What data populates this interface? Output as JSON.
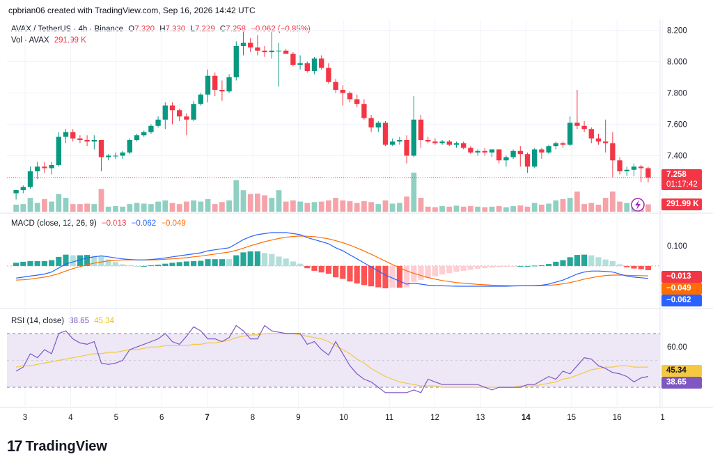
{
  "header": {
    "attribution": "cpbrian06 created with TradingView.com, Sep 16, 2026 14:42 UTC"
  },
  "price_legend": {
    "symbol": "AVAX / TetherUS · 4h · Binance",
    "o_label": "O",
    "o_value": "7.320",
    "h_label": "H",
    "h_value": "7.330",
    "l_label": "L",
    "l_value": "7.229",
    "c_label": "C",
    "c_value": "7.258",
    "change": "−0.062 (−0.85%)"
  },
  "volume_legend": {
    "label": "Vol · AVAX",
    "value": "291.99 K"
  },
  "macd_legend": {
    "label": "MACD (close, 12, 26, 9)",
    "hist": "−0.013",
    "macd": "−0.062",
    "signal": "−0.049"
  },
  "rsi_legend": {
    "label": "RSI (14, close)",
    "rsi": "38.65",
    "ma": "45.34"
  },
  "badges": {
    "price": "7.258",
    "countdown": "01:17:42",
    "volume": "291.99 K",
    "macd_hist": "−0.013",
    "macd_signal": "−0.049",
    "macd_line": "−0.062",
    "rsi_ma": "45.34",
    "rsi": "38.65"
  },
  "footer": {
    "brand": "TradingView"
  },
  "colors": {
    "up": "#089981",
    "down": "#f23645",
    "vol_up": "#8fd0c3",
    "vol_down": "#f5a3a9",
    "macd_line": "#2962ff",
    "signal_line": "#ff6d00",
    "rsi_line": "#7e57c2",
    "rsi_ma": "#f5c842",
    "rsi_band": "#ede7f6"
  },
  "chart_data": [
    {
      "type": "candlestick",
      "ylim": [
        7.06,
        8.26
      ],
      "y_ticks": [
        "8.200",
        "8.000",
        "7.800",
        "7.600",
        "7.400"
      ],
      "x_ticks": [
        "3",
        "4",
        "5",
        "6",
        "7",
        "8",
        "9",
        "10",
        "11",
        "12",
        "13",
        "14",
        "15",
        "16",
        "1"
      ],
      "candles": [
        [
          7.16,
          7.18,
          7.12,
          7.18
        ],
        [
          7.18,
          7.21,
          7.16,
          7.2
        ],
        [
          7.2,
          7.33,
          7.19,
          7.3
        ],
        [
          7.3,
          7.36,
          7.25,
          7.33
        ],
        [
          7.33,
          7.36,
          7.29,
          7.32
        ],
        [
          7.32,
          7.36,
          7.28,
          7.34
        ],
        [
          7.34,
          7.55,
          7.33,
          7.52
        ],
        [
          7.52,
          7.57,
          7.48,
          7.55
        ],
        [
          7.55,
          7.57,
          7.49,
          7.51
        ],
        [
          7.51,
          7.53,
          7.48,
          7.5
        ],
        [
          7.5,
          7.53,
          7.46,
          7.49
        ],
        [
          7.49,
          7.53,
          7.44,
          7.5
        ],
        [
          7.5,
          7.5,
          7.3,
          7.39
        ],
        [
          7.39,
          7.41,
          7.37,
          7.4
        ],
        [
          7.4,
          7.42,
          7.38,
          7.4
        ],
        [
          7.4,
          7.43,
          7.38,
          7.42
        ],
        [
          7.42,
          7.51,
          7.41,
          7.5
        ],
        [
          7.5,
          7.54,
          7.49,
          7.53
        ],
        [
          7.53,
          7.56,
          7.52,
          7.55
        ],
        [
          7.55,
          7.6,
          7.54,
          7.59
        ],
        [
          7.59,
          7.65,
          7.58,
          7.63
        ],
        [
          7.63,
          7.74,
          7.57,
          7.72
        ],
        [
          7.72,
          7.74,
          7.6,
          7.69
        ],
        [
          7.69,
          7.7,
          7.62,
          7.65
        ],
        [
          7.65,
          7.67,
          7.53,
          7.63
        ],
        [
          7.63,
          7.75,
          7.62,
          7.73
        ],
        [
          7.73,
          7.8,
          7.72,
          7.79
        ],
        [
          7.79,
          7.95,
          7.74,
          7.91
        ],
        [
          7.91,
          7.93,
          7.78,
          7.82
        ],
        [
          7.82,
          7.88,
          7.75,
          7.81
        ],
        [
          7.81,
          7.92,
          7.8,
          7.9
        ],
        [
          7.9,
          8.13,
          7.88,
          8.1
        ],
        [
          8.1,
          8.19,
          8.04,
          8.12
        ],
        [
          8.12,
          8.15,
          8.06,
          8.09
        ],
        [
          8.09,
          8.17,
          8.04,
          8.07
        ],
        [
          8.07,
          8.1,
          8.03,
          8.06
        ],
        [
          8.06,
          8.19,
          8.02,
          8.07
        ],
        [
          8.07,
          8.12,
          7.84,
          8.07
        ],
        [
          8.07,
          8.08,
          8.05,
          8.05
        ],
        [
          8.05,
          8.06,
          7.97,
          7.98
        ],
        [
          7.98,
          8.04,
          7.95,
          7.99
        ],
        [
          7.99,
          8.0,
          7.93,
          7.94
        ],
        [
          7.94,
          8.03,
          7.92,
          8.02
        ],
        [
          8.02,
          8.04,
          7.95,
          7.96
        ],
        [
          7.96,
          7.99,
          7.86,
          7.87
        ],
        [
          7.87,
          7.89,
          7.8,
          7.82
        ],
        [
          7.82,
          7.85,
          7.72,
          7.8
        ],
        [
          7.8,
          7.81,
          7.74,
          7.76
        ],
        [
          7.76,
          7.79,
          7.71,
          7.73
        ],
        [
          7.73,
          7.76,
          7.63,
          7.64
        ],
        [
          7.64,
          7.66,
          7.55,
          7.58
        ],
        [
          7.58,
          7.62,
          7.55,
          7.61
        ],
        [
          7.61,
          7.62,
          7.46,
          7.47
        ],
        [
          7.47,
          7.51,
          7.46,
          7.49
        ],
        [
          7.49,
          7.52,
          7.47,
          7.5
        ],
        [
          7.5,
          7.53,
          7.35,
          7.4
        ],
        [
          7.4,
          7.78,
          7.39,
          7.63
        ],
        [
          7.63,
          7.66,
          7.45,
          7.5
        ],
        [
          7.5,
          7.52,
          7.48,
          7.49
        ],
        [
          7.49,
          7.51,
          7.47,
          7.48
        ],
        [
          7.48,
          7.5,
          7.47,
          7.49
        ],
        [
          7.49,
          7.5,
          7.46,
          7.47
        ],
        [
          7.47,
          7.49,
          7.45,
          7.48
        ],
        [
          7.48,
          7.49,
          7.44,
          7.45
        ],
        [
          7.45,
          7.46,
          7.41,
          7.42
        ],
        [
          7.42,
          7.44,
          7.4,
          7.43
        ],
        [
          7.43,
          7.45,
          7.4,
          7.42
        ],
        [
          7.42,
          7.44,
          7.39,
          7.44
        ],
        [
          7.44,
          7.44,
          7.35,
          7.37
        ],
        [
          7.37,
          7.4,
          7.33,
          7.39
        ],
        [
          7.39,
          7.44,
          7.38,
          7.43
        ],
        [
          7.43,
          7.46,
          7.33,
          7.41
        ],
        [
          7.41,
          7.42,
          7.29,
          7.33
        ],
        [
          7.33,
          7.45,
          7.32,
          7.44
        ],
        [
          7.44,
          7.45,
          7.38,
          7.42
        ],
        [
          7.42,
          7.47,
          7.41,
          7.46
        ],
        [
          7.46,
          7.49,
          7.44,
          7.48
        ],
        [
          7.48,
          7.49,
          7.45,
          7.47
        ],
        [
          7.47,
          7.65,
          7.46,
          7.61
        ],
        [
          7.61,
          7.82,
          7.57,
          7.59
        ],
        [
          7.59,
          7.62,
          7.55,
          7.57
        ],
        [
          7.57,
          7.58,
          7.48,
          7.51
        ],
        [
          7.51,
          7.54,
          7.47,
          7.49
        ],
        [
          7.49,
          7.63,
          7.42,
          7.48
        ],
        [
          7.48,
          7.55,
          7.26,
          7.37
        ],
        [
          7.37,
          7.39,
          7.28,
          7.3
        ],
        [
          7.3,
          7.33,
          7.27,
          7.31
        ],
        [
          7.31,
          7.35,
          7.27,
          7.33
        ],
        [
          7.33,
          7.34,
          7.23,
          7.32
        ],
        [
          7.32,
          7.33,
          7.23,
          7.26
        ]
      ]
    },
    {
      "type": "bar",
      "series": "volume",
      "values": [
        0.28,
        0.3,
        0.55,
        0.35,
        0.5,
        0.4,
        0.7,
        0.55,
        0.3,
        0.3,
        0.32,
        0.3,
        0.9,
        0.2,
        0.22,
        0.2,
        0.3,
        0.35,
        0.32,
        0.3,
        0.4,
        0.45,
        0.35,
        0.3,
        0.4,
        0.45,
        0.4,
        0.5,
        0.3,
        0.38,
        0.45,
        1.25,
        0.85,
        0.7,
        0.72,
        0.65,
        0.55,
        0.85,
        0.4,
        0.45,
        0.4,
        0.35,
        0.38,
        0.4,
        0.45,
        0.55,
        0.45,
        0.42,
        0.35,
        0.42,
        0.38,
        0.3,
        0.45,
        0.32,
        0.35,
        0.6,
        1.55,
        0.55,
        0.2,
        0.18,
        0.22,
        0.2,
        0.24,
        0.2,
        0.22,
        0.2,
        0.18,
        0.2,
        0.22,
        0.18,
        0.22,
        0.25,
        0.2,
        0.35,
        0.28,
        0.32,
        0.45,
        0.5,
        0.55,
        0.8,
        0.3,
        0.35,
        0.28,
        0.55,
        0.8,
        0.4,
        0.35,
        0.3,
        0.22,
        0.29
      ]
    },
    {
      "type": "line",
      "title": "MACD (close, 12, 26, 9)",
      "ylim": [
        -0.2,
        0.22
      ],
      "y_ticks": [
        "0.100"
      ],
      "series": [
        {
          "name": "macd",
          "values": [
            -0.06,
            -0.055,
            -0.05,
            -0.045,
            -0.04,
            -0.03,
            -0.01,
            0.01,
            0.02,
            0.03,
            0.04,
            0.045,
            0.05,
            0.045,
            0.04,
            0.035,
            0.032,
            0.03,
            0.03,
            0.032,
            0.035,
            0.04,
            0.045,
            0.05,
            0.055,
            0.06,
            0.065,
            0.075,
            0.08,
            0.085,
            0.09,
            0.11,
            0.13,
            0.145,
            0.155,
            0.16,
            0.165,
            0.165,
            0.165,
            0.16,
            0.155,
            0.14,
            0.13,
            0.12,
            0.11,
            0.09,
            0.075,
            0.055,
            0.035,
            0.015,
            -0.005,
            -0.025,
            -0.045,
            -0.06,
            -0.075,
            -0.09,
            -0.085,
            -0.09,
            -0.095,
            -0.097,
            -0.098,
            -0.099,
            -0.1,
            -0.1,
            -0.1,
            -0.1,
            -0.1,
            -0.1,
            -0.1,
            -0.1,
            -0.099,
            -0.098,
            -0.098,
            -0.097,
            -0.095,
            -0.09,
            -0.08,
            -0.07,
            -0.055,
            -0.04,
            -0.03,
            -0.025,
            -0.025,
            -0.027,
            -0.03,
            -0.04,
            -0.05,
            -0.055,
            -0.058,
            -0.062
          ]
        },
        {
          "name": "signal",
          "values": [
            -0.07,
            -0.068,
            -0.065,
            -0.06,
            -0.055,
            -0.048,
            -0.038,
            -0.025,
            -0.013,
            -0.003,
            0.006,
            0.014,
            0.02,
            0.025,
            0.028,
            0.03,
            0.03,
            0.03,
            0.03,
            0.03,
            0.031,
            0.033,
            0.035,
            0.038,
            0.041,
            0.045,
            0.049,
            0.054,
            0.059,
            0.064,
            0.069,
            0.077,
            0.088,
            0.1,
            0.11,
            0.12,
            0.128,
            0.136,
            0.142,
            0.146,
            0.148,
            0.147,
            0.145,
            0.14,
            0.134,
            0.125,
            0.115,
            0.103,
            0.089,
            0.074,
            0.058,
            0.041,
            0.024,
            0.007,
            -0.008,
            -0.024,
            -0.036,
            -0.047,
            -0.057,
            -0.065,
            -0.072,
            -0.077,
            -0.082,
            -0.085,
            -0.088,
            -0.091,
            -0.093,
            -0.095,
            -0.096,
            -0.097,
            -0.098,
            -0.098,
            -0.098,
            -0.098,
            -0.097,
            -0.096,
            -0.093,
            -0.088,
            -0.082,
            -0.074,
            -0.065,
            -0.058,
            -0.052,
            -0.047,
            -0.045,
            -0.045,
            -0.046,
            -0.047,
            -0.048,
            -0.049
          ]
        }
      ]
    },
    {
      "type": "line",
      "title": "RSI (14, close)",
      "ylim": [
        15,
        85
      ],
      "y_ticks": [
        "60.00"
      ],
      "bands": [
        70,
        30
      ],
      "series": [
        {
          "name": "rsi",
          "values": [
            42,
            45,
            55,
            52,
            58,
            55,
            70,
            72,
            66,
            63,
            62,
            64,
            48,
            47,
            48,
            50,
            58,
            60,
            62,
            64,
            66,
            70,
            64,
            62,
            68,
            75,
            72,
            66,
            66,
            64,
            67,
            76,
            72,
            66,
            66,
            76,
            72,
            71,
            70,
            70,
            70,
            62,
            64,
            58,
            54,
            64,
            55,
            46,
            40,
            36,
            34,
            30,
            26,
            26,
            26,
            26,
            28,
            26,
            36,
            34,
            32,
            32,
            32,
            32,
            32,
            32,
            30,
            28,
            30,
            30,
            30,
            30,
            32,
            32,
            35,
            38,
            36,
            42,
            40,
            46,
            52,
            51,
            46,
            44,
            41,
            40,
            38,
            34,
            37,
            38
          ]
        },
        {
          "name": "ma",
          "values": [
            45,
            46,
            46,
            47,
            48,
            49,
            50,
            51,
            52,
            53,
            54,
            55,
            55,
            56,
            56,
            57,
            58,
            58,
            59,
            60,
            60,
            61,
            61,
            61,
            61,
            62,
            62,
            63,
            63,
            64,
            65,
            67,
            68,
            69,
            69,
            70,
            70,
            70,
            70,
            70,
            69,
            68,
            67,
            66,
            64,
            61,
            58,
            55,
            51,
            48,
            44,
            41,
            38,
            36,
            34,
            33,
            32,
            31,
            31,
            31,
            30,
            30,
            30,
            30,
            30,
            30,
            30,
            30,
            30,
            30,
            30,
            31,
            31,
            31,
            32,
            33,
            34,
            36,
            37,
            39,
            41,
            43,
            44,
            45,
            45,
            46,
            46,
            45,
            45,
            45
          ]
        }
      ]
    }
  ]
}
